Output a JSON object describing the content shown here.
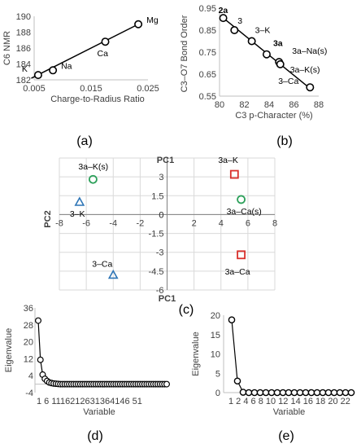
{
  "chart_data": [
    {
      "panel": "(a)",
      "type": "scatter",
      "xlabel": "Charge-to-Radius Ratio",
      "ylabel": "C6 NMR",
      "xlim": [
        0.005,
        0.025
      ],
      "ylim": [
        182,
        190
      ],
      "xticks": [
        "0.005",
        "0.015",
        "0.025"
      ],
      "yticks": [
        "182",
        "184",
        "186",
        "188",
        "190"
      ],
      "points": [
        {
          "label": "K",
          "x": 0.0057,
          "y": 182.6
        },
        {
          "label": "Na",
          "x": 0.0083,
          "y": 183.2
        },
        {
          "label": "Ca",
          "x": 0.0175,
          "y": 186.8
        },
        {
          "label": "Mg",
          "x": 0.0233,
          "y": 189.0
        }
      ],
      "fit_line": [
        [
          0.0045,
          182.2
        ],
        [
          0.0233,
          189.0
        ]
      ]
    },
    {
      "panel": "(b)",
      "type": "scatter",
      "xlabel": "C3  p-Character (%)",
      "ylabel": "C3–O7 Bond Order",
      "xlim": [
        80,
        88
      ],
      "ylim": [
        0.55,
        0.95
      ],
      "xticks": [
        "80",
        "82",
        "84",
        "86",
        "88"
      ],
      "yticks": [
        "0.55",
        "0.65",
        "0.75",
        "0.85",
        "0.95"
      ],
      "points": [
        {
          "label": "2a",
          "x": 80.3,
          "y": 0.905
        },
        {
          "label": "3",
          "x": 81.2,
          "y": 0.85
        },
        {
          "label": "3–K",
          "x": 82.6,
          "y": 0.8
        },
        {
          "label": "3a",
          "x": 83.8,
          "y": 0.74
        },
        {
          "label": "3a–Na(s)",
          "x": 84.8,
          "y": 0.705
        },
        {
          "label": "3a–K(s)",
          "x": 84.9,
          "y": 0.695
        },
        {
          "label": "3–Ca",
          "x": 87.3,
          "y": 0.59
        }
      ],
      "fit_line": [
        [
          80.2,
          0.91
        ],
        [
          87.3,
          0.585
        ]
      ]
    },
    {
      "panel": "(c)",
      "type": "scatter",
      "xlabel": "PC1",
      "ylabel": "PC2",
      "xlim": [
        -8,
        8
      ],
      "ylim": [
        -6,
        4.5
      ],
      "xticks": [
        "-8",
        "-6",
        "-4",
        "-2",
        "0",
        "2",
        "4",
        "6",
        "8"
      ],
      "yticks": [
        "3",
        "1.5",
        "0",
        "-1.5",
        "-3",
        "-4.5",
        "-6"
      ],
      "points": [
        {
          "label": "3a–K(s)",
          "x": -5.5,
          "y": 2.8,
          "marker": "circle",
          "color": "#2ca05a"
        },
        {
          "label": "3–K",
          "x": -6.5,
          "y": 1.0,
          "marker": "triangle",
          "color": "#2e75b6"
        },
        {
          "label": "3–Ca",
          "x": -4.0,
          "y": -4.8,
          "marker": "triangle",
          "color": "#2e75b6"
        },
        {
          "label": "3a–K",
          "x": 5.0,
          "y": 3.2,
          "marker": "square",
          "color": "#d9302c"
        },
        {
          "label": "3a–Ca(s)",
          "x": 5.5,
          "y": 1.2,
          "marker": "circle",
          "color": "#2ca05a"
        },
        {
          "label": "3a–Ca",
          "x": 5.5,
          "y": -3.2,
          "marker": "square",
          "color": "#d9302c"
        }
      ]
    },
    {
      "panel": "(d)",
      "type": "line",
      "xlabel": "Variable",
      "ylabel": "Eigenvalue",
      "ylim": [
        -4,
        36
      ],
      "yticks": [
        "-4",
        "4",
        "12",
        "20",
        "28",
        "36"
      ],
      "xticks": [
        "1",
        "6",
        "11",
        "16",
        "21",
        "26",
        "31",
        "36",
        "41",
        "46",
        "51"
      ],
      "x_tick_text": "1  6 1116212631364146 51",
      "x": [
        1,
        2,
        3,
        4,
        5,
        6,
        7,
        8,
        9,
        10,
        11,
        12,
        13,
        14,
        15,
        16,
        17,
        18,
        19,
        20,
        21,
        22,
        23,
        24,
        25,
        26,
        27,
        28,
        29,
        30,
        31,
        32,
        33,
        34,
        35,
        36,
        37,
        38,
        39,
        40,
        41,
        42,
        43,
        44,
        45,
        46,
        47,
        48,
        49,
        50,
        51,
        52,
        53,
        54,
        55,
        56,
        57,
        58,
        59
      ],
      "values": [
        30,
        11.5,
        4.5,
        2.5,
        1.5,
        0.8,
        0.5,
        0.3,
        0.2,
        0.1,
        0,
        0,
        0,
        0,
        0,
        0,
        0,
        0,
        0,
        0,
        0,
        0,
        0,
        0,
        0,
        0,
        0,
        0,
        0,
        0,
        0,
        0,
        0,
        0,
        0,
        0,
        0,
        0,
        0,
        0,
        0,
        0,
        0,
        0,
        0,
        0,
        0,
        0,
        0,
        0,
        0,
        0,
        0,
        0,
        0,
        0,
        0,
        0,
        0
      ]
    },
    {
      "panel": "(e)",
      "type": "line",
      "xlabel": "Variable",
      "ylabel": "Eigenvalue",
      "ylim": [
        0,
        20
      ],
      "yticks": [
        "0",
        "5",
        "10",
        "15",
        "20"
      ],
      "xticks": [
        "1",
        "2",
        "3",
        "4",
        "5",
        "6",
        "7",
        "8",
        "9",
        "10",
        "11",
        "12",
        "13",
        "14",
        "15",
        "16",
        "17",
        "18",
        "19",
        "20",
        "21",
        "22"
      ],
      "x_tick_text": "1  2  4  6  8 10 12 14 16 18 20 22",
      "x": [
        1,
        2,
        3,
        4,
        5,
        6,
        7,
        8,
        9,
        10,
        11,
        12,
        13,
        14,
        15,
        16,
        17,
        18,
        19,
        20,
        21,
        22
      ],
      "values": [
        18.8,
        3.0,
        0.1,
        0,
        0,
        0,
        0,
        0,
        0,
        0,
        0,
        0,
        0,
        0,
        0,
        0,
        0,
        0,
        0,
        0,
        0,
        0
      ]
    }
  ]
}
